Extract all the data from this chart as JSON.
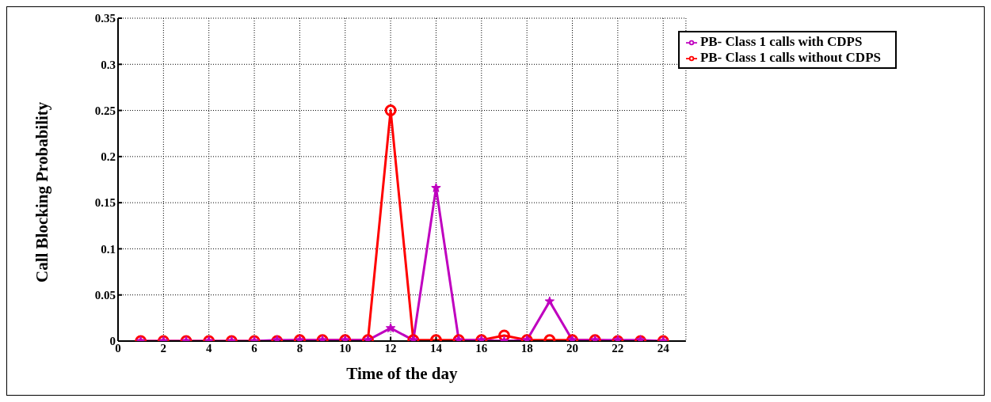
{
  "chart_data": {
    "type": "line",
    "xlabel": "Time of the day",
    "ylabel": "Call Blocking Probability",
    "x": [
      1,
      2,
      3,
      4,
      5,
      6,
      7,
      8,
      9,
      10,
      11,
      12,
      13,
      14,
      15,
      16,
      17,
      18,
      19,
      20,
      21,
      22,
      23,
      24
    ],
    "series": [
      {
        "name": "PB- Class 1 calls without CDPS",
        "color": "#ff0000",
        "marker": "circle",
        "values": [
          0,
          0,
          0,
          0,
          0,
          0,
          0,
          0.001,
          0.001,
          0.001,
          0.001,
          0.25,
          0.001,
          0.001,
          0.001,
          0.001,
          0.006,
          0.001,
          0.001,
          0.001,
          0.001,
          0,
          0,
          0
        ]
      },
      {
        "name": "PB- Class 1 calls with CDPS",
        "color": "#bf00bf",
        "marker": "star",
        "values": [
          0,
          0,
          0,
          0,
          0,
          0,
          0.001,
          0.001,
          0.001,
          0.001,
          0.001,
          0.014,
          0.001,
          0.166,
          0.001,
          0.001,
          0,
          0.001,
          0.043,
          0.001,
          0.001,
          0.001,
          0.001,
          0
        ]
      }
    ],
    "xlim": [
      0,
      25
    ],
    "xticks": [
      0,
      2,
      4,
      6,
      8,
      10,
      12,
      14,
      16,
      18,
      20,
      22,
      24
    ],
    "ylim": [
      0,
      0.35
    ],
    "yticks": [
      0,
      0.05,
      0.1,
      0.15,
      0.2,
      0.25,
      0.3,
      0.35
    ],
    "grid": true,
    "legend": "top right",
    "line_style": "solid"
  }
}
